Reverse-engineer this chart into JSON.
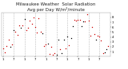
{
  "title": "Milwaukee Weather  Solar Radiation",
  "subtitle": "Avg per Day W/m²/minute",
  "background_color": "#ffffff",
  "plot_bg_color": "#ffffff",
  "grid_color": "#bbbbbb",
  "ylim": [
    0,
    9
  ],
  "yticks": [
    1,
    2,
    3,
    4,
    5,
    6,
    7,
    8
  ],
  "title_fontsize": 4.0,
  "tick_fontsize": 2.8,
  "num_points": 60,
  "seed": 42,
  "vline_interval": 6
}
